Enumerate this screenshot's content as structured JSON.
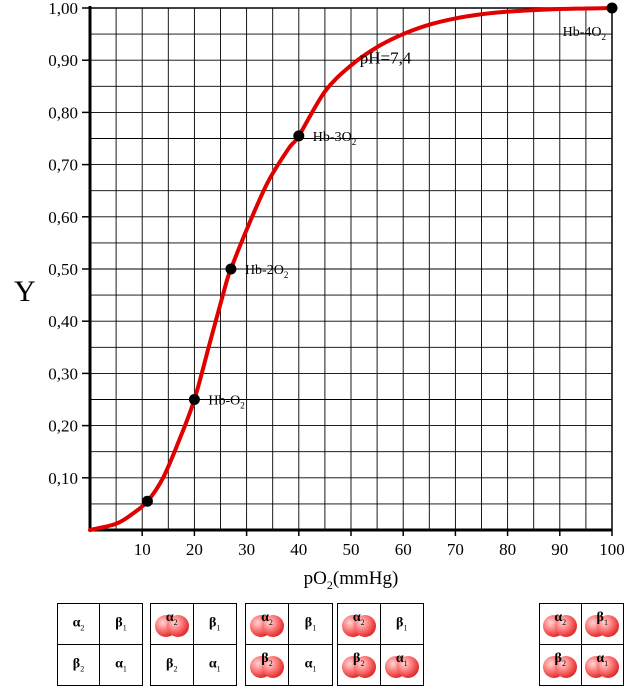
{
  "chart_data": {
    "type": "line",
    "xlabel": "pO2(mmHg)",
    "ylabel": "Y",
    "xlim": [
      0,
      100
    ],
    "ylim": [
      0,
      1
    ],
    "x_ticks": [
      "10",
      "20",
      "30",
      "40",
      "50",
      "60",
      "70",
      "80",
      "90",
      "100"
    ],
    "y_ticks": [
      "0,10",
      "0,20",
      "0,30",
      "0,40",
      "0,50",
      "0,60",
      "0,70",
      "0,80",
      "0,90",
      "1,00"
    ],
    "grid": true,
    "series": [
      {
        "color": "#e00000",
        "x": [
          0,
          5,
          8,
          11,
          14,
          17,
          20,
          23,
          26,
          27,
          30,
          34,
          38,
          40,
          45,
          50,
          55,
          60,
          65,
          70,
          75,
          80,
          85,
          90,
          95,
          100
        ],
        "y": [
          0,
          0.012,
          0.03,
          0.055,
          0.1,
          0.17,
          0.25,
          0.36,
          0.47,
          0.5,
          0.575,
          0.665,
          0.73,
          0.755,
          0.84,
          0.89,
          0.925,
          0.95,
          0.968,
          0.98,
          0.988,
          0.993,
          0.996,
          0.998,
          0.999,
          1.0
        ]
      }
    ],
    "points": [
      {
        "x": 11,
        "y": 0.055,
        "label": ""
      },
      {
        "x": 20,
        "y": 0.25,
        "label": "Hb-O",
        "sub": "2"
      },
      {
        "x": 27,
        "y": 0.5,
        "label": "Hb-2O",
        "sub": "2"
      },
      {
        "x": 40,
        "y": 0.755,
        "label": "Hb-3O",
        "sub": "2"
      },
      {
        "x": 100,
        "y": 1.0,
        "label": "Hb-4O",
        "sub": "2"
      }
    ],
    "annotations": [
      {
        "text": "pH=7,4",
        "x": 57,
        "y": 0.905
      }
    ]
  },
  "panels": [
    {
      "cells": [
        {
          "g": "α",
          "s": "2",
          "o2": false
        },
        {
          "g": "β",
          "s": "1",
          "o2": false
        },
        {
          "g": "β",
          "s": "2",
          "o2": false
        },
        {
          "g": "α",
          "s": "1",
          "o2": false
        }
      ]
    },
    {
      "cells": [
        {
          "g": "α",
          "s": "2",
          "o2": true
        },
        {
          "g": "β",
          "s": "1",
          "o2": false
        },
        {
          "g": "β",
          "s": "2",
          "o2": false
        },
        {
          "g": "α",
          "s": "1",
          "o2": false
        }
      ]
    },
    {
      "cells": [
        {
          "g": "α",
          "s": "2",
          "o2": true
        },
        {
          "g": "β",
          "s": "1",
          "o2": false
        },
        {
          "g": "β",
          "s": "2",
          "o2": true
        },
        {
          "g": "α",
          "s": "1",
          "o2": false
        }
      ]
    },
    {
      "cells": [
        {
          "g": "α",
          "s": "2",
          "o2": true
        },
        {
          "g": "β",
          "s": "1",
          "o2": false
        },
        {
          "g": "β",
          "s": "2",
          "o2": true
        },
        {
          "g": "α",
          "s": "1",
          "o2": true
        }
      ]
    },
    {
      "cells": [
        {
          "g": "α",
          "s": "2",
          "o2": true
        },
        {
          "g": "β",
          "s": "1",
          "o2": true
        },
        {
          "g": "β",
          "s": "2",
          "o2": true
        },
        {
          "g": "α",
          "s": "1",
          "o2": true
        }
      ]
    }
  ]
}
